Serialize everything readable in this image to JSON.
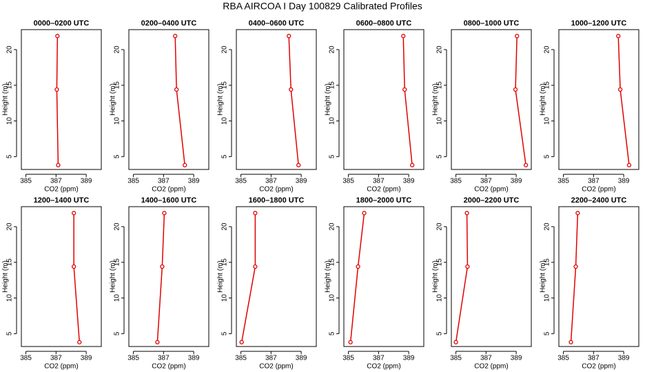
{
  "title": "RBA AIRCOA I  Day 100829  Calibrated Profiles",
  "chart_data": [
    {
      "type": "line",
      "title": "0000–0200 UTC",
      "xlabel": "CO2 (ppm)",
      "ylabel": "Height (m)",
      "x": [
        387.14,
        387.05,
        387.09
      ],
      "values": [
        3.8,
        14.4,
        21.9
      ],
      "color": "#e00000",
      "xlim": [
        384.7,
        390.0
      ],
      "ylim": [
        3.2,
        22.8
      ],
      "xticks": [
        385,
        387,
        389
      ],
      "yticks": [
        5,
        10,
        15,
        20
      ]
    },
    {
      "type": "line",
      "title": "0200–0400 UTC",
      "xlabel": "CO2 (ppm)",
      "ylabel": "Height (m)",
      "x": [
        388.41,
        387.86,
        387.77
      ],
      "values": [
        3.8,
        14.4,
        21.9
      ],
      "color": "#e00000",
      "xlim": [
        384.7,
        390.0
      ],
      "ylim": [
        3.2,
        22.8
      ],
      "xticks": [
        385,
        387,
        389
      ],
      "yticks": [
        5,
        10,
        15,
        20
      ]
    },
    {
      "type": "line",
      "title": "0400–0600 UTC",
      "xlabel": "CO2 (ppm)",
      "ylabel": "Height (m)",
      "x": [
        388.82,
        388.32,
        388.18
      ],
      "values": [
        3.8,
        14.4,
        21.9
      ],
      "color": "#e00000",
      "xlim": [
        384.7,
        390.0
      ],
      "ylim": [
        3.2,
        22.8
      ],
      "xticks": [
        385,
        387,
        389
      ],
      "yticks": [
        5,
        10,
        15,
        20
      ]
    },
    {
      "type": "line",
      "title": "0600–0800 UTC",
      "xlabel": "CO2 (ppm)",
      "ylabel": "Height (m)",
      "x": [
        389.23,
        388.73,
        388.64
      ],
      "values": [
        3.8,
        14.4,
        21.9
      ],
      "color": "#e00000",
      "xlim": [
        384.7,
        390.0
      ],
      "ylim": [
        3.2,
        22.8
      ],
      "xticks": [
        385,
        387,
        389
      ],
      "yticks": [
        5,
        10,
        15,
        20
      ]
    },
    {
      "type": "line",
      "title": "0800–1000 UTC",
      "xlabel": "CO2 (ppm)",
      "ylabel": "Height (m)",
      "x": [
        389.64,
        388.95,
        389.05
      ],
      "values": [
        3.8,
        14.4,
        21.9
      ],
      "color": "#e00000",
      "xlim": [
        384.7,
        390.0
      ],
      "ylim": [
        3.2,
        22.8
      ],
      "xticks": [
        385,
        387,
        389
      ],
      "yticks": [
        5,
        10,
        15,
        20
      ]
    },
    {
      "type": "line",
      "title": "1000–1200 UTC",
      "xlabel": "CO2 (ppm)",
      "ylabel": "Height (m)",
      "x": [
        389.36,
        388.77,
        388.64
      ],
      "values": [
        3.8,
        14.4,
        21.9
      ],
      "color": "#e00000",
      "xlim": [
        384.7,
        390.0
      ],
      "ylim": [
        3.2,
        22.8
      ],
      "xticks": [
        385,
        387,
        389
      ],
      "yticks": [
        5,
        10,
        15,
        20
      ]
    },
    {
      "type": "line",
      "title": "1200–1400 UTC",
      "xlabel": "CO2 (ppm)",
      "ylabel": "Height (m)",
      "x": [
        388.55,
        388.18,
        388.18
      ],
      "values": [
        3.8,
        14.4,
        21.9
      ],
      "color": "#e00000",
      "xlim": [
        384.7,
        390.0
      ],
      "ylim": [
        3.2,
        22.8
      ],
      "xticks": [
        385,
        387,
        389
      ],
      "yticks": [
        5,
        10,
        15,
        20
      ]
    },
    {
      "type": "line",
      "title": "1400–1600 UTC",
      "xlabel": "CO2 (ppm)",
      "ylabel": "Height (m)",
      "x": [
        386.59,
        386.91,
        387.05
      ],
      "values": [
        3.8,
        14.4,
        21.9
      ],
      "color": "#e00000",
      "xlim": [
        384.7,
        390.0
      ],
      "ylim": [
        3.2,
        22.8
      ],
      "xticks": [
        385,
        387,
        389
      ],
      "yticks": [
        5,
        10,
        15,
        20
      ]
    },
    {
      "type": "line",
      "title": "1600–1800 UTC",
      "xlabel": "CO2 (ppm)",
      "ylabel": "Height (m)",
      "x": [
        385.05,
        385.95,
        385.95
      ],
      "values": [
        3.8,
        14.4,
        21.9
      ],
      "color": "#e00000",
      "xlim": [
        384.7,
        390.0
      ],
      "ylim": [
        3.2,
        22.8
      ],
      "xticks": [
        385,
        387,
        389
      ],
      "yticks": [
        5,
        10,
        15,
        20
      ]
    },
    {
      "type": "line",
      "title": "1800–2000 UTC",
      "xlabel": "CO2 (ppm)",
      "ylabel": "Height (m)",
      "x": [
        385.14,
        385.64,
        386.05
      ],
      "values": [
        3.8,
        14.4,
        21.9
      ],
      "color": "#e00000",
      "xlim": [
        384.7,
        390.0
      ],
      "ylim": [
        3.2,
        22.8
      ],
      "xticks": [
        385,
        387,
        389
      ],
      "yticks": [
        5,
        10,
        15,
        20
      ]
    },
    {
      "type": "line",
      "title": "2000–2200 UTC",
      "xlabel": "CO2 (ppm)",
      "ylabel": "Height (m)",
      "x": [
        385.0,
        385.77,
        385.73
      ],
      "values": [
        3.8,
        14.4,
        21.9
      ],
      "color": "#e00000",
      "xlim": [
        384.7,
        390.0
      ],
      "ylim": [
        3.2,
        22.8
      ],
      "xticks": [
        385,
        387,
        389
      ],
      "yticks": [
        5,
        10,
        15,
        20
      ]
    },
    {
      "type": "line",
      "title": "2200–2400 UTC",
      "xlabel": "CO2 (ppm)",
      "ylabel": "Height (m)",
      "x": [
        385.5,
        385.82,
        385.95
      ],
      "values": [
        3.8,
        14.4,
        21.9
      ],
      "color": "#e00000",
      "xlim": [
        384.7,
        390.0
      ],
      "ylim": [
        3.2,
        22.8
      ],
      "xticks": [
        385,
        387,
        389
      ],
      "yticks": [
        5,
        10,
        15,
        20
      ]
    }
  ]
}
